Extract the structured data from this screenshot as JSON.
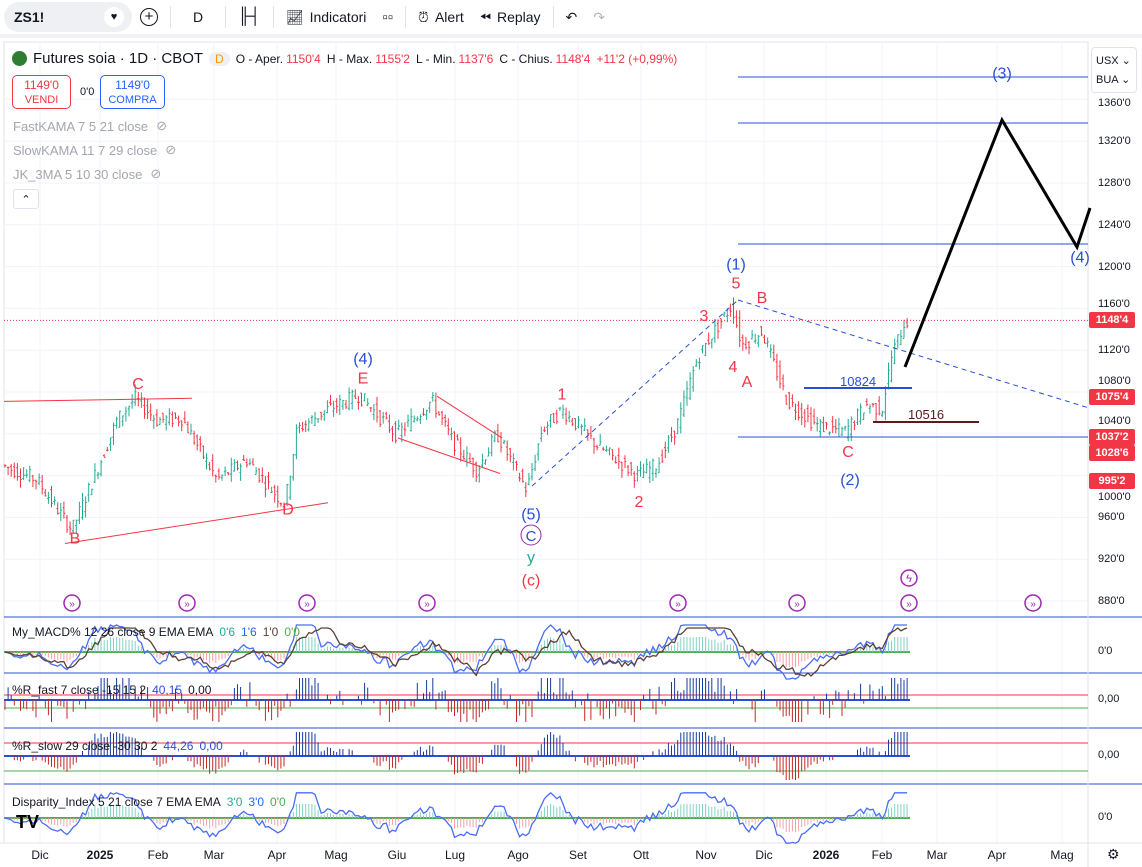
{
  "toolbar": {
    "symbol": "ZS1!",
    "interval": "D",
    "indicators": "Indicatori",
    "alert": "Alert",
    "replay": "Replay"
  },
  "legend": {
    "title": "Futures soia · 1D · CBOT",
    "badge": "D",
    "o_label": "O - Aper.",
    "o": "1150'4",
    "h_label": "H - Max.",
    "h": "1155'2",
    "l_label": "L - Min.",
    "l": "1137'6",
    "c_label": "C - Chius.",
    "c": "1148'4",
    "change": "+11'2 (+0,99%)"
  },
  "trade": {
    "sell_price": "1149'0",
    "sell_label": "VENDI",
    "spread": "0'0",
    "buy_price": "1149'0",
    "buy_label": "COMPRA"
  },
  "indicators": [
    "FastKAMA 7 5 21 close",
    "SlowKAMA 11 7 29 close",
    "JK_3MA 5 10 30 close"
  ],
  "scale": {
    "currency": "USX",
    "unit": "BUA"
  },
  "price_axis": [
    "1360'0",
    "1320'0",
    "1280'0",
    "1240'0",
    "1200'0",
    "1160'0",
    "1120'0",
    "1080'0",
    "1040'0",
    "1000'0",
    "960'0",
    "920'0",
    "880'0"
  ],
  "price_axis_values": [
    1360,
    1320,
    1280,
    1240,
    1200,
    1160,
    1120,
    1080,
    1040,
    1000,
    960,
    920,
    880
  ],
  "price_tags": [
    {
      "text": "1148'4",
      "value": 1148.5
    },
    {
      "text": "1075'4",
      "value": 1075.5
    },
    {
      "text": "1037'2",
      "value": 1037.25
    },
    {
      "text": "1028'6",
      "value": 1028.75
    },
    {
      "text": "995'2",
      "value": 995.25
    }
  ],
  "levels": {
    "l1": "10824",
    "l2": "10516"
  },
  "waves": [
    {
      "t": "C",
      "c": "#f23645",
      "p": 1083,
      "d": 138
    },
    {
      "t": "B",
      "c": "#f23645",
      "p": 935,
      "d": 75
    },
    {
      "t": "D",
      "c": "#f23645",
      "p": 963,
      "d": 288
    },
    {
      "t": "(4)",
      "c": "#2a4fd6",
      "p": 1107,
      "d": 363
    },
    {
      "t": "E",
      "c": "#f23645",
      "p": 1088,
      "d": 363
    },
    {
      "t": "1",
      "c": "#f23645",
      "p": 1073,
      "d": 562
    },
    {
      "t": "(5)",
      "c": "#2a4fd6",
      "p": 958,
      "d": 531
    },
    {
      "t": "y",
      "c": "#22ab94",
      "p": 917,
      "d": 531
    },
    {
      "t": "(c)",
      "c": "#f23645",
      "p": 895,
      "d": 531
    },
    {
      "t": "2",
      "c": "#f23645",
      "p": 970,
      "d": 639
    },
    {
      "t": "3",
      "c": "#f23645",
      "p": 1148,
      "d": 704
    },
    {
      "t": "4",
      "c": "#f23645",
      "p": 1099,
      "d": 733
    },
    {
      "t": "(1)",
      "c": "#2a4fd6",
      "p": 1197,
      "d": 736
    },
    {
      "t": "5",
      "c": "#f23645",
      "p": 1179,
      "d": 736
    },
    {
      "t": "B",
      "c": "#f23645",
      "p": 1165,
      "d": 762
    },
    {
      "t": "A",
      "c": "#f23645",
      "p": 1085,
      "d": 747
    },
    {
      "t": "C",
      "c": "#f23645",
      "p": 1018,
      "d": 848
    },
    {
      "t": "(2)",
      "c": "#2a4fd6",
      "p": 991,
      "d": 850
    },
    {
      "t": "(3)",
      "c": "#2a4fd6",
      "p": 1380,
      "d": 1002
    },
    {
      "t": "(4)",
      "c": "#2a4fd6",
      "p": 1204,
      "d": 1080
    }
  ],
  "price_path": [
    [
      5,
      1010
    ],
    [
      40,
      996
    ],
    [
      75,
      948
    ],
    [
      100,
      1005
    ],
    [
      120,
      1053
    ],
    [
      138,
      1074
    ],
    [
      160,
      1053
    ],
    [
      185,
      1055
    ],
    [
      220,
      996
    ],
    [
      250,
      1015
    ],
    [
      288,
      972
    ],
    [
      300,
      1044
    ],
    [
      330,
      1063
    ],
    [
      362,
      1077
    ],
    [
      400,
      1039
    ],
    [
      435,
      1072
    ],
    [
      455,
      1034
    ],
    [
      480,
      1005
    ],
    [
      500,
      1040
    ],
    [
      530,
      986
    ],
    [
      545,
      1044
    ],
    [
      565,
      1063
    ],
    [
      600,
      1029
    ],
    [
      620,
      1015
    ],
    [
      640,
      1000
    ],
    [
      660,
      1010
    ],
    [
      680,
      1048
    ],
    [
      700,
      1111
    ],
    [
      715,
      1135
    ],
    [
      735,
      1163
    ],
    [
      745,
      1125
    ],
    [
      765,
      1138
    ],
    [
      790,
      1072
    ],
    [
      820,
      1048
    ],
    [
      848,
      1042
    ],
    [
      870,
      1068
    ],
    [
      885,
      1063
    ],
    [
      895,
      1115
    ],
    [
      908,
      1148
    ]
  ],
  "panes": [
    {
      "label": "My_MACD% 12 26 close 9 EMA EMA",
      "vals": [
        {
          "t": "0'6",
          "c": "#22ab94"
        },
        {
          "t": "1'6",
          "c": "#2962ff"
        },
        {
          "t": "1'0",
          "c": "#5d4037"
        },
        {
          "t": "0'0",
          "c": "#4caf50"
        }
      ],
      "axis": "0'0"
    },
    {
      "label": "%R_fast 7 close -15 15 2",
      "vals": [
        {
          "t": "40,15",
          "c": "#2a4fd6"
        },
        {
          "t": "0,00",
          "c": "#131722"
        }
      ],
      "axis": "0,00"
    },
    {
      "label": "%R_slow 29 close -30 30 2",
      "vals": [
        {
          "t": "44,26",
          "c": "#2a4fd6"
        },
        {
          "t": "0,00",
          "c": "#2a4fd6"
        }
      ],
      "axis": "0,00"
    },
    {
      "label": "Disparity_Index 5 21 close 7 EMA EMA",
      "vals": [
        {
          "t": "3'0",
          "c": "#22ab94"
        },
        {
          "t": "3'0",
          "c": "#2962ff"
        },
        {
          "t": "0'0",
          "c": "#4caf50"
        }
      ],
      "axis": "0'0"
    }
  ],
  "time_axis": [
    [
      "Dic",
      40
    ],
    [
      "2025",
      100
    ],
    [
      "Feb",
      158
    ],
    [
      "Mar",
      214
    ],
    [
      "Apr",
      277
    ],
    [
      "Mag",
      336
    ],
    [
      "Giu",
      397
    ],
    [
      "Lug",
      455
    ],
    [
      "Ago",
      518
    ],
    [
      "Set",
      578
    ],
    [
      "Ott",
      641
    ],
    [
      "Nov",
      706
    ],
    [
      "Dic",
      764
    ],
    [
      "2026",
      826
    ],
    [
      "Feb",
      882
    ],
    [
      "Mar",
      937
    ],
    [
      "Apr",
      997
    ],
    [
      "Mag",
      1062
    ]
  ],
  "colors": {
    "up": "#22ab94",
    "down": "#f23645",
    "blue": "#2a4fd6",
    "purple": "#9c27b0"
  }
}
